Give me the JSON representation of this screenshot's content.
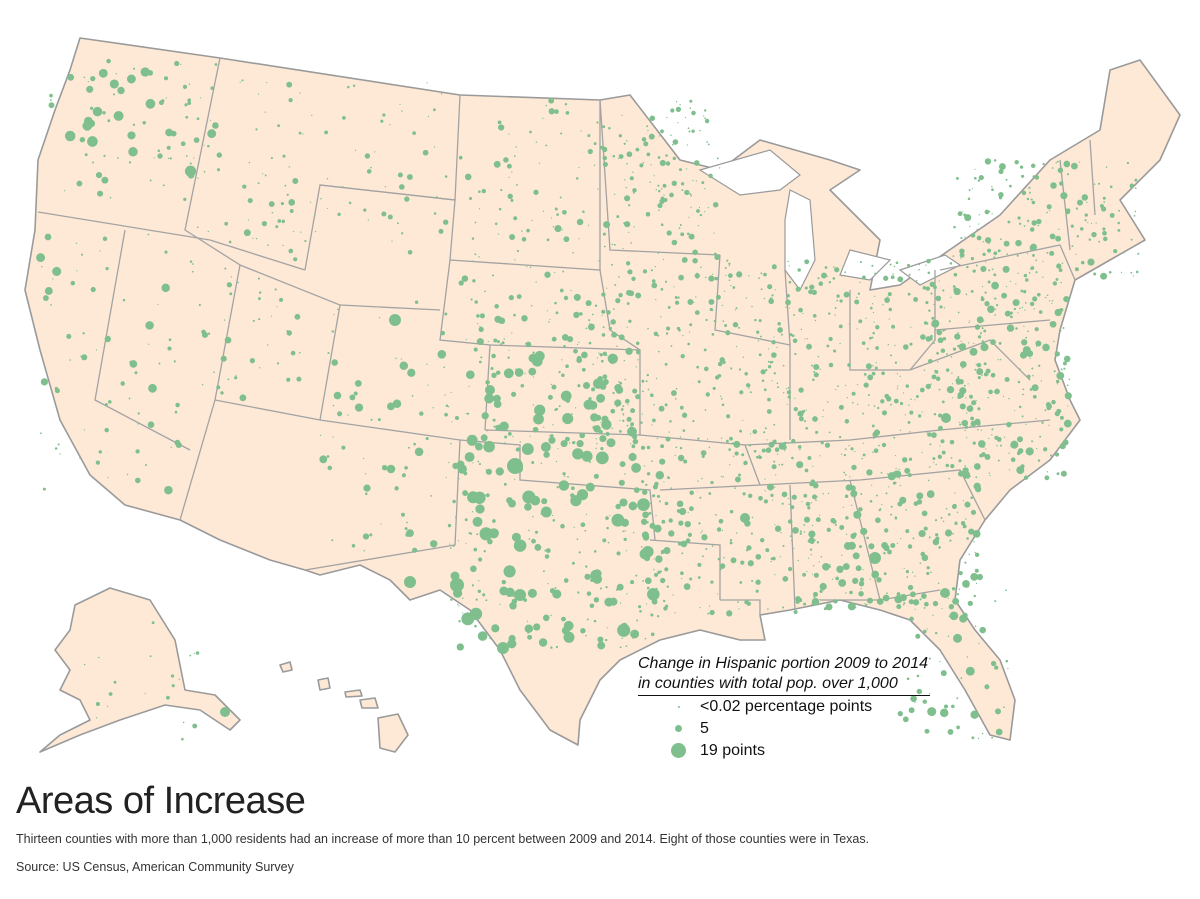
{
  "map": {
    "dot_color": "#7fbf8e",
    "land_color": "#fde9d6",
    "border_color": "#9a9a9a"
  },
  "legend": {
    "title_line1": "Change in Hispanic portion 2009 to 2014",
    "title_line2": "in counties with total pop. over 1,000",
    "items": [
      {
        "label": "<0.02 percentage points"
      },
      {
        "label": "5"
      },
      {
        "label": "19 points"
      }
    ]
  },
  "title": "Areas of Increase",
  "subtitle": "Thirteen counties with more than 1,000 residents had an increase of more than 10 percent between 2009 and 2014. Eight of those counties were in Texas.",
  "source": "Source: US Census, American Community Survey"
}
